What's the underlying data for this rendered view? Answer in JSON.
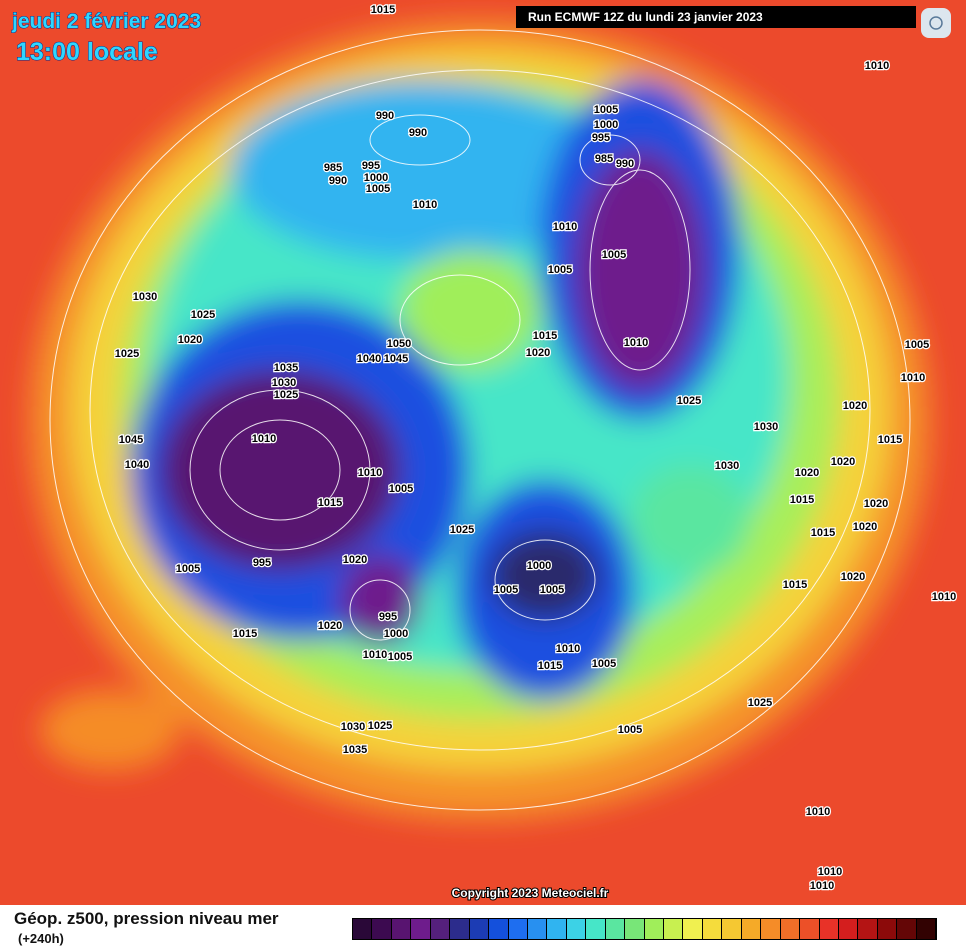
{
  "header": {
    "date": "jeudi 2 février 2023",
    "time": "13:00 locale",
    "run": "Run ECMWF 12Z du lundi 23 janvier 2023"
  },
  "copyright": "Copyright 2023 Meteociel.fr",
  "legend": {
    "title": "Géop. z500, pression niveau mer",
    "lead": "(+240h)",
    "colors": [
      "#2a0838",
      "#3c0a50",
      "#581470",
      "#6e1c8c",
      "#55207c",
      "#2c2c8c",
      "#1c3cb4",
      "#1450dc",
      "#1e6ef0",
      "#2890f0",
      "#30b4f0",
      "#3cd2e6",
      "#46e6c8",
      "#5ae6a0",
      "#78e678",
      "#a0ee5a",
      "#c8f050",
      "#f0f050",
      "#f5dc3c",
      "#f5c832",
      "#f5aa28",
      "#f58c28",
      "#f06e28",
      "#ec5028",
      "#e83228",
      "#d41e1e",
      "#b41414",
      "#8c0a0a",
      "#640606",
      "#320202"
    ]
  },
  "isobar_labels": [
    1015,
    1010,
    990,
    990,
    985,
    990,
    995,
    1000,
    1005,
    1010,
    1005,
    1000,
    995,
    985,
    990,
    1010,
    1005,
    1005,
    1030,
    1025,
    1020,
    1025,
    1015,
    1020,
    1010,
    1050,
    1040,
    1045,
    1035,
    1030,
    1025,
    1005,
    1010,
    1025,
    1020,
    1045,
    1040,
    1010,
    1015,
    1030,
    1030,
    1010,
    1005,
    1015,
    1020,
    1020,
    1015,
    1020,
    1020,
    1025,
    1015,
    1005,
    995,
    1020,
    1000,
    1005,
    1005,
    1015,
    1020,
    1010,
    1015,
    1020,
    995,
    1000,
    1010,
    1010,
    1005,
    1015,
    1005,
    1025,
    1030,
    1025,
    1005,
    1035,
    1010,
    1010,
    1010
  ]
}
